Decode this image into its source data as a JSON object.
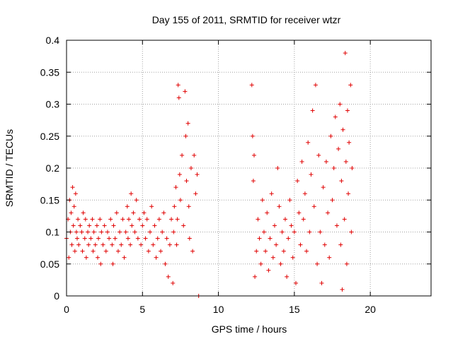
{
  "chart_data": {
    "type": "scatter",
    "title": "Day 155 of 2011, SRMTID for receiver wtzr",
    "xlabel": "GPS time / hours",
    "ylabel": "SRMTID / TECUs",
    "xlim": [
      0,
      24
    ],
    "ylim": [
      0,
      0.4
    ],
    "grid": true,
    "marker": "+",
    "color": "#e00000",
    "xticks": [
      {
        "value": 0,
        "label": "0"
      },
      {
        "value": 5,
        "label": "5"
      },
      {
        "value": 10,
        "label": "10"
      },
      {
        "value": 15,
        "label": "15"
      },
      {
        "value": 20,
        "label": "20"
      }
    ],
    "yticks": [
      {
        "value": 0,
        "label": "0"
      },
      {
        "value": 0.05,
        "label": "0.05"
      },
      {
        "value": 0.1,
        "label": "0.1"
      },
      {
        "value": 0.15,
        "label": "0.15"
      },
      {
        "value": 0.2,
        "label": "0.2"
      },
      {
        "value": 0.25,
        "label": "0.25"
      },
      {
        "value": 0.3,
        "label": "0.3"
      },
      {
        "value": 0.35,
        "label": "0.35"
      },
      {
        "value": 0.4,
        "label": "0.4"
      }
    ],
    "series": [
      {
        "name": "SRMTID",
        "points": [
          [
            0.0,
            0.09
          ],
          [
            0.1,
            0.12
          ],
          [
            0.15,
            0.06
          ],
          [
            0.2,
            0.15
          ],
          [
            0.25,
            0.1
          ],
          [
            0.3,
            0.13
          ],
          [
            0.35,
            0.08
          ],
          [
            0.4,
            0.17
          ],
          [
            0.45,
            0.11
          ],
          [
            0.5,
            0.14
          ],
          [
            0.55,
            0.07
          ],
          [
            0.6,
            0.16
          ],
          [
            0.65,
            0.1
          ],
          [
            0.7,
            0.09
          ],
          [
            0.75,
            0.12
          ],
          [
            0.8,
            0.08
          ],
          [
            0.9,
            0.11
          ],
          [
            1.0,
            0.1
          ],
          [
            1.05,
            0.07
          ],
          [
            1.1,
            0.13
          ],
          [
            1.2,
            0.09
          ],
          [
            1.25,
            0.12
          ],
          [
            1.3,
            0.06
          ],
          [
            1.4,
            0.1
          ],
          [
            1.45,
            0.08
          ],
          [
            1.5,
            0.11
          ],
          [
            1.6,
            0.09
          ],
          [
            1.7,
            0.12
          ],
          [
            1.75,
            0.07
          ],
          [
            1.8,
            0.1
          ],
          [
            1.9,
            0.08
          ],
          [
            2.0,
            0.11
          ],
          [
            2.05,
            0.06
          ],
          [
            2.1,
            0.09
          ],
          [
            2.2,
            0.12
          ],
          [
            2.25,
            0.05
          ],
          [
            2.3,
            0.1
          ],
          [
            2.4,
            0.08
          ],
          [
            2.5,
            0.11
          ],
          [
            2.6,
            0.07
          ],
          [
            2.7,
            0.1
          ],
          [
            2.8,
            0.09
          ],
          [
            2.9,
            0.12
          ],
          [
            3.0,
            0.08
          ],
          [
            3.05,
            0.05
          ],
          [
            3.1,
            0.11
          ],
          [
            3.2,
            0.09
          ],
          [
            3.3,
            0.13
          ],
          [
            3.4,
            0.07
          ],
          [
            3.5,
            0.1
          ],
          [
            3.6,
            0.08
          ],
          [
            3.7,
            0.12
          ],
          [
            3.8,
            0.06
          ],
          [
            3.9,
            0.1
          ],
          [
            4.0,
            0.14
          ],
          [
            4.05,
            0.09
          ],
          [
            4.1,
            0.12
          ],
          [
            4.2,
            0.08
          ],
          [
            4.25,
            0.16
          ],
          [
            4.3,
            0.11
          ],
          [
            4.4,
            0.13
          ],
          [
            4.5,
            0.1
          ],
          [
            4.6,
            0.15
          ],
          [
            4.7,
            0.09
          ],
          [
            4.8,
            0.12
          ],
          [
            4.9,
            0.08
          ],
          [
            5.0,
            0.11
          ],
          [
            5.1,
            0.13
          ],
          [
            5.2,
            0.09
          ],
          [
            5.3,
            0.12
          ],
          [
            5.4,
            0.07
          ],
          [
            5.5,
            0.1
          ],
          [
            5.6,
            0.14
          ],
          [
            5.7,
            0.08
          ],
          [
            5.8,
            0.11
          ],
          [
            5.9,
            0.06
          ],
          [
            6.0,
            0.09
          ],
          [
            6.1,
            0.12
          ],
          [
            6.2,
            0.07
          ],
          [
            6.3,
            0.1
          ],
          [
            6.4,
            0.13
          ],
          [
            6.5,
            0.05
          ],
          [
            6.6,
            0.09
          ],
          [
            6.7,
            0.03
          ],
          [
            6.8,
            0.08
          ],
          [
            6.9,
            0.12
          ],
          [
            7.0,
            0.02
          ],
          [
            7.05,
            0.1
          ],
          [
            7.1,
            0.14
          ],
          [
            7.2,
            0.17
          ],
          [
            7.25,
            0.08
          ],
          [
            7.3,
            0.12
          ],
          [
            7.35,
            0.33
          ],
          [
            7.4,
            0.31
          ],
          [
            7.45,
            0.19
          ],
          [
            7.5,
            0.15
          ],
          [
            7.6,
            0.22
          ],
          [
            7.7,
            0.11
          ],
          [
            7.8,
            0.32
          ],
          [
            7.85,
            0.25
          ],
          [
            7.9,
            0.18
          ],
          [
            8.0,
            0.27
          ],
          [
            8.05,
            0.14
          ],
          [
            8.1,
            0.09
          ],
          [
            8.2,
            0.2
          ],
          [
            8.3,
            0.07
          ],
          [
            8.4,
            0.22
          ],
          [
            8.5,
            0.16
          ],
          [
            8.6,
            0.19
          ],
          [
            8.7,
            0.0
          ],
          [
            12.2,
            0.33
          ],
          [
            12.25,
            0.25
          ],
          [
            12.3,
            0.18
          ],
          [
            12.35,
            0.22
          ],
          [
            12.4,
            0.03
          ],
          [
            12.5,
            0.07
          ],
          [
            12.6,
            0.12
          ],
          [
            12.7,
            0.09
          ],
          [
            12.8,
            0.05
          ],
          [
            12.9,
            0.15
          ],
          [
            13.0,
            0.1
          ],
          [
            13.1,
            0.07
          ],
          [
            13.2,
            0.13
          ],
          [
            13.3,
            0.04
          ],
          [
            13.4,
            0.09
          ],
          [
            13.5,
            0.16
          ],
          [
            13.6,
            0.06
          ],
          [
            13.7,
            0.11
          ],
          [
            13.8,
            0.08
          ],
          [
            13.9,
            0.2
          ],
          [
            14.0,
            0.14
          ],
          [
            14.1,
            0.05
          ],
          [
            14.2,
            0.1
          ],
          [
            14.3,
            0.07
          ],
          [
            14.4,
            0.12
          ],
          [
            14.5,
            0.03
          ],
          [
            14.6,
            0.09
          ],
          [
            14.7,
            0.15
          ],
          [
            14.8,
            0.11
          ],
          [
            14.9,
            0.06
          ],
          [
            15.0,
            0.1
          ],
          [
            15.1,
            0.02
          ],
          [
            15.2,
            0.18
          ],
          [
            15.3,
            0.13
          ],
          [
            15.4,
            0.08
          ],
          [
            15.5,
            0.21
          ],
          [
            15.6,
            0.12
          ],
          [
            15.7,
            0.16
          ],
          [
            15.8,
            0.07
          ],
          [
            15.9,
            0.24
          ],
          [
            16.0,
            0.1
          ],
          [
            16.1,
            0.19
          ],
          [
            16.2,
            0.29
          ],
          [
            16.3,
            0.14
          ],
          [
            16.4,
            0.33
          ],
          [
            16.5,
            0.05
          ],
          [
            16.6,
            0.22
          ],
          [
            16.7,
            0.1
          ],
          [
            16.8,
            0.02
          ],
          [
            16.9,
            0.17
          ],
          [
            17.0,
            0.08
          ],
          [
            17.1,
            0.21
          ],
          [
            17.2,
            0.13
          ],
          [
            17.3,
            0.06
          ],
          [
            17.4,
            0.25
          ],
          [
            17.5,
            0.15
          ],
          [
            17.6,
            0.2
          ],
          [
            17.7,
            0.28
          ],
          [
            17.8,
            0.11
          ],
          [
            17.9,
            0.23
          ],
          [
            18.0,
            0.3
          ],
          [
            18.05,
            0.08
          ],
          [
            18.1,
            0.18
          ],
          [
            18.15,
            0.01
          ],
          [
            18.2,
            0.26
          ],
          [
            18.3,
            0.12
          ],
          [
            18.35,
            0.38
          ],
          [
            18.4,
            0.21
          ],
          [
            18.45,
            0.05
          ],
          [
            18.5,
            0.29
          ],
          [
            18.55,
            0.16
          ],
          [
            18.6,
            0.24
          ],
          [
            18.7,
            0.33
          ],
          [
            18.75,
            0.1
          ],
          [
            18.8,
            0.2
          ]
        ]
      }
    ]
  }
}
